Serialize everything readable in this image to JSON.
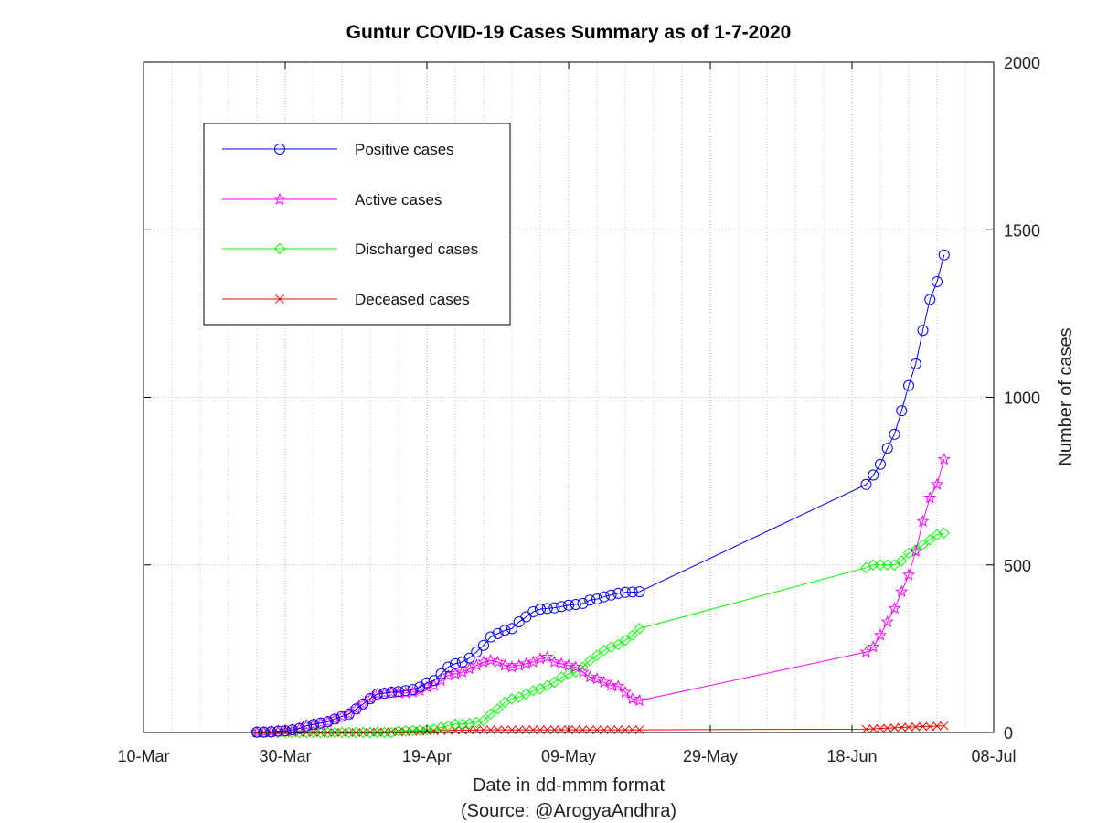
{
  "chart_data": {
    "type": "line",
    "title": "Guntur COVID-19 Cases Summary as of 1-7-2020",
    "xlabel": "Date in dd-mmm format",
    "source": "(Source: @ArogyaAndhra)",
    "ylabel": "Number of cases",
    "x_axis": {
      "type": "date",
      "range": [
        "2020-03-10",
        "2020-07-08"
      ],
      "tick_dates": [
        "2020-03-10",
        "2020-03-30",
        "2020-04-19",
        "2020-05-09",
        "2020-05-29",
        "2020-06-18",
        "2020-07-08"
      ],
      "tick_labels": [
        "10-Mar",
        "30-Mar",
        "19-Apr",
        "09-May",
        "29-May",
        "18-Jun",
        "08-Jul"
      ],
      "minor_grid": true
    },
    "y_axis": {
      "position": "right",
      "range": [
        0,
        2000
      ],
      "ticks": [
        0,
        500,
        1000,
        1500,
        2000
      ],
      "tick_labels": [
        "0",
        "500",
        "1000",
        "1500",
        "2000"
      ]
    },
    "grid": true,
    "legend_position": "top-left",
    "x": [
      "2020-03-26",
      "2020-03-27",
      "2020-03-28",
      "2020-03-29",
      "2020-03-30",
      "2020-03-31",
      "2020-04-01",
      "2020-04-02",
      "2020-04-03",
      "2020-04-04",
      "2020-04-05",
      "2020-04-06",
      "2020-04-07",
      "2020-04-08",
      "2020-04-09",
      "2020-04-10",
      "2020-04-11",
      "2020-04-12",
      "2020-04-13",
      "2020-04-14",
      "2020-04-15",
      "2020-04-16",
      "2020-04-17",
      "2020-04-18",
      "2020-04-19",
      "2020-04-20",
      "2020-04-21",
      "2020-04-22",
      "2020-04-23",
      "2020-04-24",
      "2020-04-25",
      "2020-04-26",
      "2020-04-27",
      "2020-04-28",
      "2020-04-29",
      "2020-04-30",
      "2020-05-01",
      "2020-05-02",
      "2020-05-03",
      "2020-05-04",
      "2020-05-05",
      "2020-05-06",
      "2020-05-07",
      "2020-05-08",
      "2020-05-09",
      "2020-05-10",
      "2020-05-11",
      "2020-05-12",
      "2020-05-13",
      "2020-05-14",
      "2020-05-15",
      "2020-05-16",
      "2020-05-17",
      "2020-05-18",
      "2020-05-19",
      "2020-06-20",
      "2020-06-21",
      "2020-06-22",
      "2020-06-23",
      "2020-06-24",
      "2020-06-25",
      "2020-06-26",
      "2020-06-27",
      "2020-06-28",
      "2020-06-29",
      "2020-06-30",
      "2020-07-01"
    ],
    "series": [
      {
        "name": "Positive cases",
        "color": "#0000ff",
        "marker": "circle",
        "values": [
          1,
          1,
          2,
          4,
          5,
          8,
          12,
          20,
          24,
          28,
          32,
          40,
          48,
          55,
          70,
          85,
          101,
          115,
          117,
          120,
          122,
          125,
          128,
          135,
          148,
          155,
          175,
          195,
          205,
          210,
          222,
          240,
          260,
          285,
          295,
          305,
          310,
          330,
          345,
          360,
          368,
          370,
          372,
          376,
          380,
          382,
          385,
          395,
          398,
          405,
          410,
          415,
          418,
          419,
          420,
          740,
          768,
          800,
          848,
          890,
          960,
          1035,
          1100,
          1200,
          1292,
          1345,
          1425
        ]
      },
      {
        "name": "Active cases",
        "color": "#ff00ff",
        "marker": "star",
        "values": [
          1,
          1,
          2,
          4,
          5,
          8,
          12,
          20,
          24,
          28,
          32,
          40,
          48,
          55,
          70,
          85,
          101,
          115,
          117,
          120,
          118,
          118,
          120,
          125,
          135,
          140,
          155,
          170,
          175,
          180,
          190,
          200,
          210,
          215,
          210,
          200,
          195,
          200,
          205,
          210,
          220,
          225,
          210,
          205,
          200,
          195,
          180,
          165,
          160,
          150,
          140,
          138,
          120,
          100,
          95,
          240,
          255,
          290,
          330,
          370,
          420,
          470,
          540,
          630,
          700,
          740,
          815
        ]
      },
      {
        "name": "Discharged cases",
        "color": "#00ff00",
        "marker": "diamond",
        "values": [
          0,
          0,
          0,
          0,
          0,
          0,
          0,
          0,
          0,
          0,
          0,
          0,
          0,
          0,
          0,
          0,
          0,
          0,
          0,
          0,
          4,
          5,
          6,
          7,
          8,
          10,
          15,
          20,
          25,
          25,
          27,
          30,
          35,
          55,
          70,
          90,
          100,
          105,
          115,
          125,
          130,
          140,
          150,
          165,
          175,
          180,
          195,
          215,
          230,
          245,
          255,
          262,
          275,
          290,
          310,
          492,
          500,
          500,
          500,
          500,
          512,
          535,
          545,
          560,
          575,
          590,
          595
        ]
      },
      {
        "name": "Deceased cases",
        "color": "#ff0000",
        "marker": "x",
        "values": [
          0,
          0,
          0,
          0,
          0,
          0,
          0,
          0,
          0,
          0,
          0,
          0,
          0,
          0,
          0,
          0,
          1,
          1,
          1,
          2,
          2,
          2,
          3,
          4,
          4,
          5,
          6,
          6,
          7,
          7,
          7,
          7,
          8,
          8,
          8,
          8,
          8,
          8,
          8,
          8,
          8,
          8,
          8,
          8,
          8,
          8,
          8,
          8,
          8,
          8,
          8,
          8,
          8,
          8,
          8,
          10,
          11,
          12,
          13,
          14,
          15,
          16,
          17,
          18,
          18,
          19,
          20
        ]
      }
    ]
  }
}
